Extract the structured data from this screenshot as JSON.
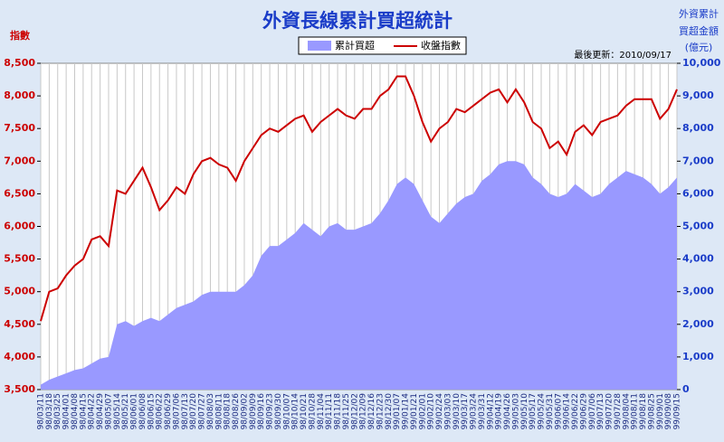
{
  "chart_data": {
    "type": "area-line",
    "title": "外資長線累計買超統計",
    "y_axis_label": "指數",
    "y2_axis_label_lines": [
      "外資累計",
      "買超金額",
      "(億元)"
    ],
    "update_note": "最後更新：2010/09/17",
    "categories": [
      "98/03/11",
      "98/03/18",
      "98/03/25",
      "98/04/01",
      "98/04/08",
      "98/04/15",
      "98/04/22",
      "98/04/29",
      "98/05/07",
      "98/05/14",
      "98/05/21",
      "98/06/01",
      "98/06/08",
      "98/06/15",
      "98/06/22",
      "98/06/29",
      "98/07/06",
      "98/07/13",
      "98/07/20",
      "98/07/27",
      "98/08/03",
      "98/08/11",
      "98/08/18",
      "98/08/26",
      "98/09/02",
      "98/09/09",
      "98/09/16",
      "98/09/23",
      "98/09/30",
      "98/10/07",
      "98/10/14",
      "98/10/21",
      "98/10/28",
      "98/11/04",
      "98/11/11",
      "98/11/18",
      "98/11/25",
      "98/12/02",
      "98/12/09",
      "98/12/16",
      "98/12/23",
      "98/12/30",
      "99/01/07",
      "99/01/14",
      "99/01/21",
      "99/02/01",
      "99/02/10",
      "99/02/24",
      "99/03/03",
      "99/03/10",
      "99/03/17",
      "99/03/24",
      "99/03/31",
      "99/04/12",
      "99/04/19",
      "99/04/26",
      "99/05/03",
      "99/05/10",
      "99/05/17",
      "99/05/24",
      "99/05/31",
      "99/06/07",
      "99/06/14",
      "99/06/22",
      "99/06/29",
      "99/07/06",
      "99/07/13",
      "99/07/20",
      "99/07/28",
      "99/08/04",
      "99/08/11",
      "99/08/18",
      "99/08/25",
      "99/09/01",
      "99/09/08",
      "99/09/15"
    ],
    "series": [
      {
        "name": "累計買超",
        "type": "area",
        "axis": "y2",
        "color": "#9999ff",
        "values": [
          150,
          300,
          400,
          500,
          600,
          650,
          800,
          950,
          1000,
          2000,
          2100,
          1950,
          2100,
          2200,
          2100,
          2300,
          2500,
          2600,
          2700,
          2900,
          3000,
          3000,
          3000,
          3000,
          3200,
          3500,
          4100,
          4400,
          4400,
          4600,
          4800,
          5100,
          4900,
          4700,
          5000,
          5100,
          4900,
          4900,
          5000,
          5100,
          5400,
          5800,
          6300,
          6500,
          6300,
          5800,
          5300,
          5100,
          5400,
          5700,
          5900,
          6000,
          6400,
          6600,
          6900,
          7000,
          7000,
          6900,
          6500,
          6300,
          6000,
          5900,
          6000,
          6300,
          6100,
          5900,
          6000,
          6300,
          6500,
          6700,
          6600,
          6500,
          6300,
          6000,
          6200,
          6500
        ]
      },
      {
        "name": "收盤指數",
        "type": "line",
        "color": "#cc0000",
        "values": [
          4550,
          5000,
          5050,
          5250,
          5400,
          5500,
          5800,
          5850,
          5700,
          6550,
          6500,
          6700,
          6900,
          6600,
          6250,
          6400,
          6600,
          6500,
          6800,
          7000,
          7050,
          6950,
          6900,
          6700,
          7000,
          7200,
          7400,
          7500,
          7450,
          7550,
          7650,
          7700,
          7450,
          7600,
          7700,
          7800,
          7700,
          7650,
          7800,
          7800,
          8000,
          8100,
          8300,
          8300,
          8000,
          7600,
          7300,
          7500,
          7600,
          7800,
          7750,
          7850,
          7950,
          8050,
          8100,
          7900,
          8100,
          7900,
          7600,
          7500,
          7200,
          7300,
          7100,
          7450,
          7550,
          7400,
          7600,
          7650,
          7700,
          7850,
          7950,
          7950,
          7950,
          7650,
          7800,
          8100
        ]
      }
    ],
    "ylim": [
      3500,
      8500
    ],
    "yticks": [
      {
        "value": 3500,
        "label": "3,500"
      },
      {
        "value": 4000,
        "label": "4,000"
      },
      {
        "value": 4500,
        "label": "4,500"
      },
      {
        "value": 5000,
        "label": "5,000"
      },
      {
        "value": 5500,
        "label": "5,500"
      },
      {
        "value": 6000,
        "label": "6,000"
      },
      {
        "value": 6500,
        "label": "6,500"
      },
      {
        "value": 7000,
        "label": "7,000"
      },
      {
        "value": 7500,
        "label": "7,500"
      },
      {
        "value": 8000,
        "label": "8,000"
      },
      {
        "value": 8500,
        "label": "8,500"
      }
    ],
    "y2lim": [
      0,
      10000
    ],
    "y2ticks": [
      0,
      {
        "value": 1000,
        "label": "1,000"
      },
      {
        "value": 2000,
        "label": "2,000"
      },
      {
        "value": 3000,
        "label": "3,000"
      },
      {
        "value": 4000,
        "label": "4,000"
      },
      {
        "value": 5000,
        "label": "5,000"
      },
      {
        "value": 6000,
        "label": "6,000"
      },
      {
        "value": 7000,
        "label": "7,000"
      },
      {
        "value": 8000,
        "label": "8,000"
      },
      {
        "value": 9000,
        "label": "9,000"
      },
      {
        "value": 10000,
        "label": "10,000"
      }
    ],
    "grid": "vertical"
  }
}
